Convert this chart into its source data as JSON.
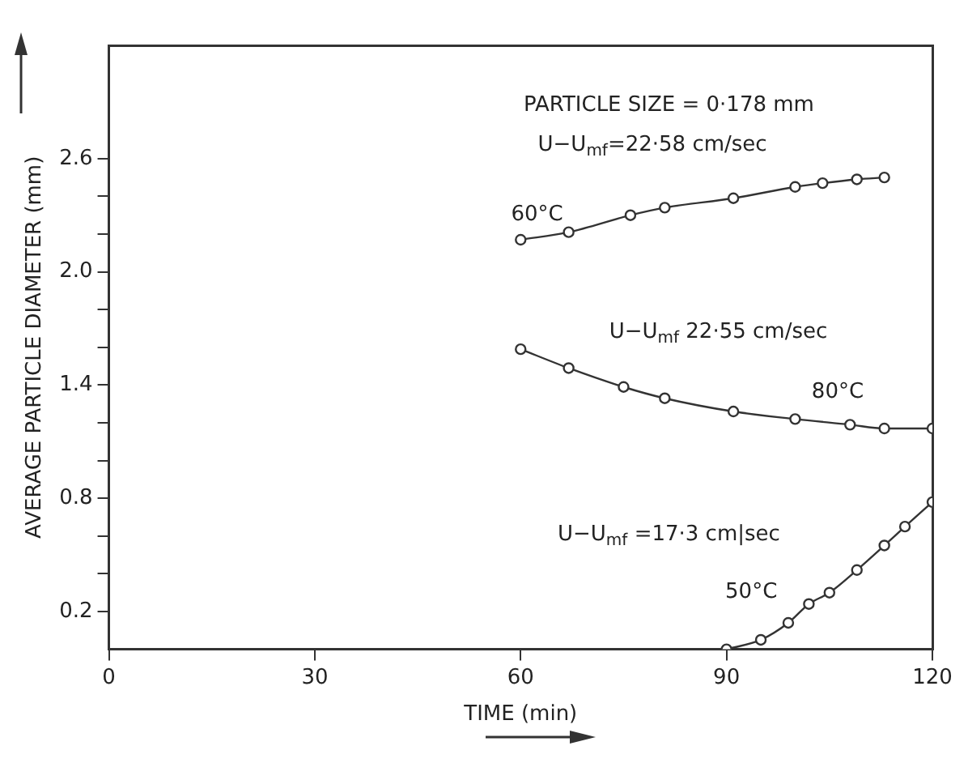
{
  "chart_data": {
    "type": "line",
    "xlabel": "TIME (min)",
    "ylabel": "AVERAGE PARTICLE DIAMETER (mm)",
    "series": [
      {
        "color": "#333333",
        "x": [
          60,
          67,
          76,
          81,
          91,
          100,
          104,
          109,
          113
        ],
        "values": [
          2.17,
          2.21,
          2.3,
          2.34,
          2.39,
          2.45,
          2.47,
          2.49,
          2.5
        ]
      },
      {
        "color": "#333333",
        "x": [
          60,
          67,
          75,
          81,
          91,
          100,
          108,
          113,
          120
        ],
        "values": [
          1.59,
          1.49,
          1.39,
          1.33,
          1.26,
          1.22,
          1.19,
          1.17,
          1.17
        ]
      },
      {
        "color": "#333333",
        "x": [
          90,
          95,
          99,
          102,
          105,
          109,
          113,
          116,
          120
        ],
        "values": [
          0,
          0.05,
          0.14,
          0.24,
          0.3,
          0.42,
          0.55,
          0.65,
          0.78
        ]
      }
    ],
    "xlim": [
      0,
      120
    ],
    "xticks": [
      0,
      30,
      60,
      90,
      120
    ],
    "ylim": [
      0,
      3.2
    ],
    "yticks": [
      0.2,
      {
        "value": 0.4,
        "label": null
      },
      {
        "value": 0.6,
        "label": null
      },
      0.8,
      {
        "value": 1.0,
        "label": null
      },
      {
        "value": 1.2,
        "label": null
      },
      1.4,
      {
        "value": 1.6,
        "label": null
      },
      {
        "value": 1.8,
        "label": null
      },
      {
        "value": 2,
        "label": "2.0"
      },
      {
        "value": 2.2,
        "label": null
      },
      {
        "value": 2.4,
        "label": null
      },
      2.6
    ],
    "annotations": [
      "PARTICLE SIZE = 0·178 mm",
      "U−U$_{mf}$=22·58 cm/sec",
      "60°C",
      "U−U$_{mf}$ 22·55 cm/sec",
      "80°C",
      "U−U$_{mf}$ =17·3 cm|sec",
      "50°C"
    ],
    "grid": false,
    "legend": false,
    "marker": "circle",
    "line_style": "solid"
  }
}
